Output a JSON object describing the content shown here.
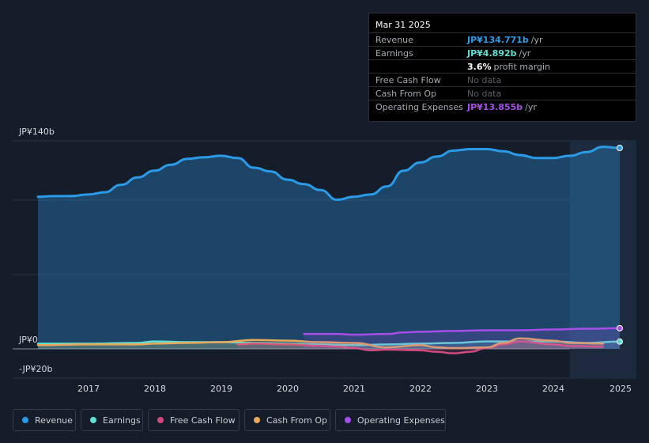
{
  "chart_data": {
    "type": "area",
    "y_axis": {
      "top_label": "JP¥140b",
      "zero_label": "JP¥0",
      "bottom_label": "-JP¥20b",
      "ylim": [
        -20,
        140
      ],
      "unit": "JP¥ billions"
    },
    "x_ticks": [
      "2017",
      "2018",
      "2019",
      "2020",
      "2021",
      "2022",
      "2023",
      "2024",
      "2025"
    ],
    "forecast_shading_from": 2024.25,
    "series": [
      {
        "name": "Revenue",
        "color": "#2b9be8",
        "points": [
          [
            2016.25,
            102
          ],
          [
            2016.5,
            102.5
          ],
          [
            2016.75,
            102.5
          ],
          [
            2017.0,
            103.5
          ],
          [
            2017.25,
            105
          ],
          [
            2017.5,
            110
          ],
          [
            2017.75,
            115
          ],
          [
            2018.0,
            119.5
          ],
          [
            2018.25,
            123.5
          ],
          [
            2018.5,
            127.5
          ],
          [
            2018.75,
            128.5
          ],
          [
            2019.0,
            129.5
          ],
          [
            2019.25,
            128
          ],
          [
            2019.5,
            121.5
          ],
          [
            2019.75,
            119
          ],
          [
            2020.0,
            113.5
          ],
          [
            2020.25,
            110.5
          ],
          [
            2020.5,
            106.5
          ],
          [
            2020.75,
            100
          ],
          [
            2021.0,
            102
          ],
          [
            2021.25,
            103.5
          ],
          [
            2021.5,
            109
          ],
          [
            2021.75,
            119.5
          ],
          [
            2022.0,
            125
          ],
          [
            2022.25,
            129
          ],
          [
            2022.5,
            133
          ],
          [
            2022.75,
            134
          ],
          [
            2023.0,
            134
          ],
          [
            2023.25,
            132.5
          ],
          [
            2023.5,
            130
          ],
          [
            2023.75,
            128
          ],
          [
            2024.0,
            128
          ],
          [
            2024.25,
            129.5
          ],
          [
            2024.5,
            132
          ],
          [
            2024.75,
            135.5
          ],
          [
            2025.0,
            134.771
          ]
        ]
      },
      {
        "name": "Earnings",
        "color": "#5ee0d4",
        "points": [
          [
            2016.25,
            3.5
          ],
          [
            2017.0,
            3.5
          ],
          [
            2017.75,
            4
          ],
          [
            2018.0,
            5
          ],
          [
            2018.5,
            4.5
          ],
          [
            2019.0,
            4.5
          ],
          [
            2019.5,
            4
          ],
          [
            2020.0,
            3.5
          ],
          [
            2020.5,
            3
          ],
          [
            2021.0,
            2.5
          ],
          [
            2021.5,
            3
          ],
          [
            2022.0,
            3.5
          ],
          [
            2022.5,
            4
          ],
          [
            2023.0,
            5
          ],
          [
            2023.5,
            5
          ],
          [
            2024.0,
            5
          ],
          [
            2024.5,
            4
          ],
          [
            2025.0,
            4.892
          ]
        ]
      },
      {
        "name": "Free Cash Flow",
        "color": "#d2497f",
        "points": [
          [
            2019.25,
            3
          ],
          [
            2019.5,
            3.5
          ],
          [
            2020.0,
            3
          ],
          [
            2020.5,
            2
          ],
          [
            2020.75,
            1.5
          ],
          [
            2021.0,
            0.5
          ],
          [
            2021.25,
            -1
          ],
          [
            2021.5,
            -0.5
          ],
          [
            2022.0,
            -1
          ],
          [
            2022.25,
            -2
          ],
          [
            2022.5,
            -3
          ],
          [
            2022.75,
            -2
          ],
          [
            2023.0,
            0.5
          ],
          [
            2023.25,
            3
          ],
          [
            2023.5,
            5
          ],
          [
            2024.0,
            3
          ],
          [
            2024.25,
            2
          ],
          [
            2024.75,
            1.5
          ]
        ]
      },
      {
        "name": "Cash From Op",
        "color": "#e8a95c",
        "points": [
          [
            2016.25,
            2.5
          ],
          [
            2017.0,
            3
          ],
          [
            2017.75,
            3
          ],
          [
            2018.0,
            3.5
          ],
          [
            2018.5,
            4
          ],
          [
            2019.0,
            4.5
          ],
          [
            2019.5,
            6
          ],
          [
            2020.0,
            5.5
          ],
          [
            2020.5,
            4.5
          ],
          [
            2021.0,
            4
          ],
          [
            2021.5,
            1
          ],
          [
            2022.0,
            2.5
          ],
          [
            2022.25,
            1
          ],
          [
            2022.5,
            0.5
          ],
          [
            2023.0,
            1
          ],
          [
            2023.25,
            4
          ],
          [
            2023.5,
            7
          ],
          [
            2024.0,
            5.5
          ],
          [
            2024.25,
            4
          ],
          [
            2024.75,
            3.5
          ]
        ]
      },
      {
        "name": "Operating Expenses",
        "color": "#a54ee8",
        "points": [
          [
            2020.25,
            10
          ],
          [
            2020.75,
            10
          ],
          [
            2021.0,
            9.5
          ],
          [
            2021.5,
            10
          ],
          [
            2021.75,
            11
          ],
          [
            2022.0,
            11.5
          ],
          [
            2022.5,
            12
          ],
          [
            2023.0,
            12.5
          ],
          [
            2023.5,
            12.5
          ],
          [
            2024.0,
            13
          ],
          [
            2024.5,
            13.5
          ],
          [
            2025.0,
            13.855
          ]
        ]
      }
    ]
  },
  "tooltip": {
    "date": "Mar 31 2025",
    "rows": [
      {
        "label": "Revenue",
        "value": "JP¥134.771b",
        "unit": "/yr",
        "color": "#2b9be8"
      },
      {
        "label": "Earnings",
        "value": "JP¥4.892b",
        "unit": "/yr",
        "color": "#5ee0d4"
      },
      {
        "label": "",
        "value": "3.6%",
        "unit": "profit margin",
        "color": "#ffffff"
      },
      {
        "label": "Free Cash Flow",
        "nodata": "No data"
      },
      {
        "label": "Cash From Op",
        "nodata": "No data"
      },
      {
        "label": "Operating Expenses",
        "value": "JP¥13.855b",
        "unit": "/yr",
        "color": "#a54ee8"
      }
    ]
  },
  "legend": [
    {
      "label": "Revenue",
      "color": "#2b9be8"
    },
    {
      "label": "Earnings",
      "color": "#5ee0d4"
    },
    {
      "label": "Free Cash Flow",
      "color": "#d2497f"
    },
    {
      "label": "Cash From Op",
      "color": "#e8a95c"
    },
    {
      "label": "Operating Expenses",
      "color": "#a54ee8"
    }
  ]
}
